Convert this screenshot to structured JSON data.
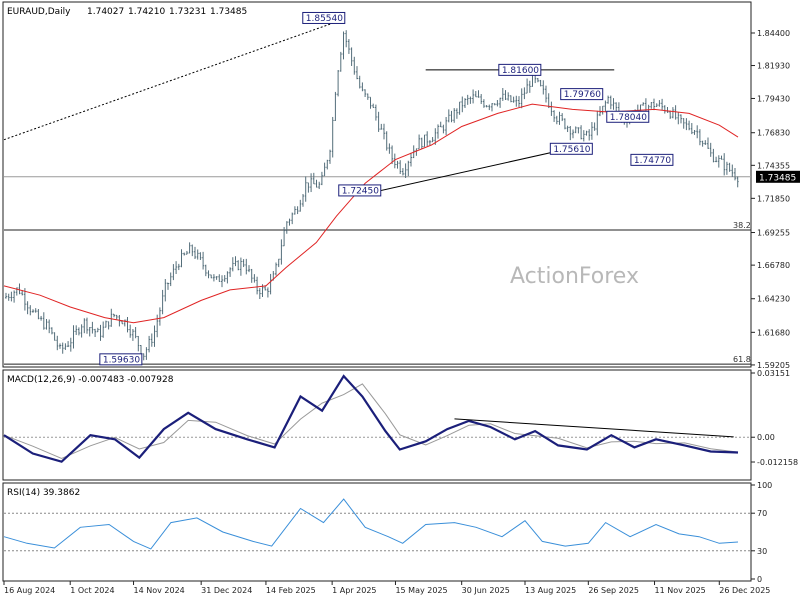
{
  "chart_data": {
    "type": "ohlc",
    "symbol_title": "EURAUD,Daily",
    "ohlc_readout": [
      "1.74027",
      "1.74210",
      "1.73231",
      "1.73485"
    ],
    "last_price": "1.73485",
    "watermark": "ActionForex",
    "colors": {
      "bars": "#546e7a",
      "ma": "#e02424",
      "macd": "#1b1f7a",
      "signal": "#9a9a9a",
      "rsi": "#3a8fd9",
      "label_border": "#1b1f7a",
      "last_price_bg": "#000000"
    },
    "price_axis": {
      "range": [
        1.592,
        1.866
      ],
      "ticks": [
        "1.84400",
        "1.81930",
        "1.79430",
        "1.76830",
        "1.74355",
        "1.71850",
        "1.69255",
        "1.66780",
        "1.64230",
        "1.61680",
        "1.59205"
      ]
    },
    "dates": [
      "16 Aug 2024",
      "1 Oct 2024",
      "14 Nov 2024",
      "31 Dec 2024",
      "14 Feb 2025",
      "1 Apr 2025",
      "15 May 2025",
      "30 Jun 2025",
      "13 Aug 2025",
      "26 Sep 2025",
      "11 Nov 2025",
      "26 Dec 2025"
    ],
    "date_range": [
      "2024-08-16",
      "2026-01-08"
    ],
    "closes": [
      [
        "2024-08-16",
        1.643
      ],
      [
        "2024-08-26",
        1.65
      ],
      [
        "2024-09-06",
        1.63
      ],
      [
        "2024-09-16",
        1.62
      ],
      [
        "2024-09-24",
        1.603
      ],
      [
        "2024-10-01",
        1.61
      ],
      [
        "2024-10-10",
        1.625
      ],
      [
        "2024-10-21",
        1.615
      ],
      [
        "2024-10-31",
        1.63
      ],
      [
        "2024-11-08",
        1.625
      ],
      [
        "2024-11-14",
        1.615
      ],
      [
        "2024-11-21",
        1.6
      ],
      [
        "2024-11-28",
        1.615
      ],
      [
        "2024-12-06",
        1.65
      ],
      [
        "2024-12-15",
        1.67
      ],
      [
        "2024-12-24",
        1.68
      ],
      [
        "2024-12-31",
        1.67
      ],
      [
        "2025-01-10",
        1.655
      ],
      [
        "2025-01-20",
        1.665
      ],
      [
        "2025-01-30",
        1.67
      ],
      [
        "2025-02-07",
        1.65
      ],
      [
        "2025-02-14",
        1.648
      ],
      [
        "2025-02-20",
        1.66
      ],
      [
        "2025-02-28",
        1.7
      ],
      [
        "2025-03-07",
        1.71
      ],
      [
        "2025-03-14",
        1.73
      ],
      [
        "2025-03-24",
        1.728
      ],
      [
        "2025-03-31",
        1.76
      ],
      [
        "2025-04-04",
        1.81
      ],
      [
        "2025-04-09",
        1.845
      ],
      [
        "2025-04-14",
        1.825
      ],
      [
        "2025-04-21",
        1.8
      ],
      [
        "2025-04-28",
        1.79
      ],
      [
        "2025-05-05",
        1.77
      ],
      [
        "2025-05-12",
        1.75
      ],
      [
        "2025-05-20",
        1.74
      ],
      [
        "2025-05-30",
        1.76
      ],
      [
        "2025-06-09",
        1.765
      ],
      [
        "2025-06-19",
        1.775
      ],
      [
        "2025-06-30",
        1.79
      ],
      [
        "2025-07-08",
        1.795
      ],
      [
        "2025-07-18",
        1.79
      ],
      [
        "2025-07-28",
        1.795
      ],
      [
        "2025-08-08",
        1.79
      ],
      [
        "2025-08-13",
        1.8
      ],
      [
        "2025-08-18",
        1.81
      ],
      [
        "2025-08-25",
        1.8
      ],
      [
        "2025-09-04",
        1.78
      ],
      [
        "2025-09-15",
        1.77
      ],
      [
        "2025-09-26",
        1.765
      ],
      [
        "2025-10-03",
        1.78
      ],
      [
        "2025-10-10",
        1.795
      ],
      [
        "2025-10-20",
        1.778
      ],
      [
        "2025-10-30",
        1.785
      ],
      [
        "2025-11-11",
        1.79
      ],
      [
        "2025-11-20",
        1.786
      ],
      [
        "2025-11-30",
        1.775
      ],
      [
        "2025-12-10",
        1.77
      ],
      [
        "2025-12-20",
        1.752
      ],
      [
        "2025-12-31",
        1.742
      ],
      [
        "2026-01-08",
        1.73485
      ]
    ],
    "ma_series": [
      [
        "2024-08-16",
        1.652
      ],
      [
        "2024-09-10",
        1.645
      ],
      [
        "2024-10-01",
        1.636
      ],
      [
        "2024-10-25",
        1.628
      ],
      [
        "2024-11-14",
        1.624
      ],
      [
        "2024-12-05",
        1.628
      ],
      [
        "2024-12-31",
        1.641
      ],
      [
        "2025-01-20",
        1.649
      ],
      [
        "2025-02-14",
        1.652
      ],
      [
        "2025-02-28",
        1.666
      ],
      [
        "2025-03-21",
        1.685
      ],
      [
        "2025-04-04",
        1.705
      ],
      [
        "2025-04-24",
        1.73
      ],
      [
        "2025-05-15",
        1.748
      ],
      [
        "2025-06-09",
        1.759
      ],
      [
        "2025-06-30",
        1.773
      ],
      [
        "2025-07-25",
        1.783
      ],
      [
        "2025-08-18",
        1.79
      ],
      [
        "2025-09-15",
        1.786
      ],
      [
        "2025-10-10",
        1.784
      ],
      [
        "2025-11-11",
        1.786
      ],
      [
        "2025-12-05",
        1.783
      ],
      [
        "2025-12-26",
        1.774
      ],
      [
        "2026-01-08",
        1.765
      ]
    ],
    "levels": [
      {
        "name": "last_price_line",
        "value": 1.73485,
        "color": "#9a9a9a"
      },
      {
        "name": "fib-38-2-line",
        "value": 1.6945,
        "label": "38.2",
        "color": "#222222"
      },
      {
        "name": "fib-61-8-line",
        "value": 1.5927,
        "label": "61.8",
        "color": "#222222"
      }
    ],
    "trendlines": [
      {
        "name": "dotted-rise-trendline",
        "start": [
          "2024-08-16",
          1.763
        ],
        "end": [
          "2025-04-08",
          1.854
        ],
        "style": "dotted"
      },
      {
        "name": "resistance-1-8160-line",
        "start": [
          "2025-06-05",
          1.816
        ],
        "end": [
          "2025-10-14",
          1.816
        ],
        "style": "solid"
      },
      {
        "name": "support-trendline",
        "start": [
          "2025-05-01",
          1.7235
        ],
        "end": [
          "2025-09-28",
          1.76
        ],
        "style": "solid"
      }
    ],
    "annotations": [
      {
        "text": "1.85540",
        "at": [
          "2025-04-07",
          1.8554
        ],
        "anchor": "left"
      },
      {
        "text": "1.81600",
        "at": [
          "2025-08-24",
          1.816
        ],
        "anchor": "right"
      },
      {
        "text": "1.79760",
        "at": [
          "2025-10-06",
          1.7976
        ],
        "anchor": "right"
      },
      {
        "text": "1.78040",
        "at": [
          "2025-11-07",
          1.7804
        ],
        "anchor": "right"
      },
      {
        "text": "1.75610",
        "at": [
          "2025-09-26",
          1.7561
        ],
        "anchor": "left"
      },
      {
        "text": "1.74770",
        "at": [
          "2025-11-21",
          1.7477
        ],
        "anchor": "left"
      },
      {
        "text": "1.72450",
        "at": [
          "2025-05-02",
          1.7245
        ],
        "anchor": "left"
      },
      {
        "text": "1.59630",
        "at": [
          "2024-11-17",
          1.5963
        ],
        "anchor": "left"
      }
    ],
    "macd": {
      "title": "MACD(12,26,9) -0.007483 -0.007928",
      "range": [
        -0.02,
        0.032
      ],
      "ticks": [
        "0.03151",
        "0.00",
        "-0.012158"
      ],
      "series": [
        [
          "2024-08-16",
          0.001
        ],
        [
          "2024-09-05",
          -0.008
        ],
        [
          "2024-09-25",
          -0.012
        ],
        [
          "2024-10-15",
          0.001
        ],
        [
          "2024-11-01",
          -0.001
        ],
        [
          "2024-11-18",
          -0.01
        ],
        [
          "2024-12-05",
          0.004
        ],
        [
          "2024-12-22",
          0.012
        ],
        [
          "2025-01-10",
          0.004
        ],
        [
          "2025-02-01",
          -0.001
        ],
        [
          "2025-02-20",
          -0.005
        ],
        [
          "2025-03-10",
          0.02
        ],
        [
          "2025-03-25",
          0.013
        ],
        [
          "2025-04-09",
          0.03
        ],
        [
          "2025-04-22",
          0.02
        ],
        [
          "2025-05-08",
          0.003
        ],
        [
          "2025-05-18",
          -0.006
        ],
        [
          "2025-06-05",
          -0.002
        ],
        [
          "2025-06-20",
          0.004
        ],
        [
          "2025-07-05",
          0.008
        ],
        [
          "2025-07-20",
          0.005
        ],
        [
          "2025-08-06",
          -0.001
        ],
        [
          "2025-08-20",
          0.003
        ],
        [
          "2025-09-05",
          -0.004
        ],
        [
          "2025-09-25",
          -0.006
        ],
        [
          "2025-10-12",
          0.001
        ],
        [
          "2025-10-28",
          -0.005
        ],
        [
          "2025-11-12",
          -0.001
        ],
        [
          "2025-12-02",
          -0.004
        ],
        [
          "2025-12-20",
          -0.007
        ],
        [
          "2026-01-08",
          -0.0075
        ]
      ],
      "trendline": {
        "start": [
          "2025-06-25",
          0.009
        ],
        "end": [
          "2026-01-05",
          0.0002
        ]
      }
    },
    "rsi": {
      "title": "RSI(14) 39.3862",
      "range": [
        0,
        100
      ],
      "ticks": [
        "100",
        "70",
        "30",
        "0"
      ],
      "levels": [
        70,
        30
      ],
      "series": [
        [
          "2024-08-16",
          45
        ],
        [
          "2024-09-01",
          38
        ],
        [
          "2024-09-20",
          33
        ],
        [
          "2024-10-08",
          55
        ],
        [
          "2024-10-28",
          58
        ],
        [
          "2024-11-14",
          40
        ],
        [
          "2024-11-26",
          32
        ],
        [
          "2024-12-10",
          60
        ],
        [
          "2024-12-28",
          65
        ],
        [
          "2025-01-15",
          50
        ],
        [
          "2025-02-05",
          40
        ],
        [
          "2025-02-18",
          35
        ],
        [
          "2025-03-10",
          75
        ],
        [
          "2025-03-26",
          60
        ],
        [
          "2025-04-09",
          85
        ],
        [
          "2025-04-24",
          55
        ],
        [
          "2025-05-10",
          45
        ],
        [
          "2025-05-20",
          38
        ],
        [
          "2025-06-05",
          58
        ],
        [
          "2025-06-25",
          60
        ],
        [
          "2025-07-10",
          55
        ],
        [
          "2025-07-28",
          45
        ],
        [
          "2025-08-13",
          62
        ],
        [
          "2025-08-25",
          40
        ],
        [
          "2025-09-10",
          35
        ],
        [
          "2025-09-26",
          38
        ],
        [
          "2025-10-08",
          60
        ],
        [
          "2025-10-25",
          45
        ],
        [
          "2025-11-12",
          58
        ],
        [
          "2025-11-28",
          48
        ],
        [
          "2025-12-12",
          45
        ],
        [
          "2025-12-26",
          38
        ],
        [
          "2026-01-08",
          39.39
        ]
      ]
    }
  }
}
